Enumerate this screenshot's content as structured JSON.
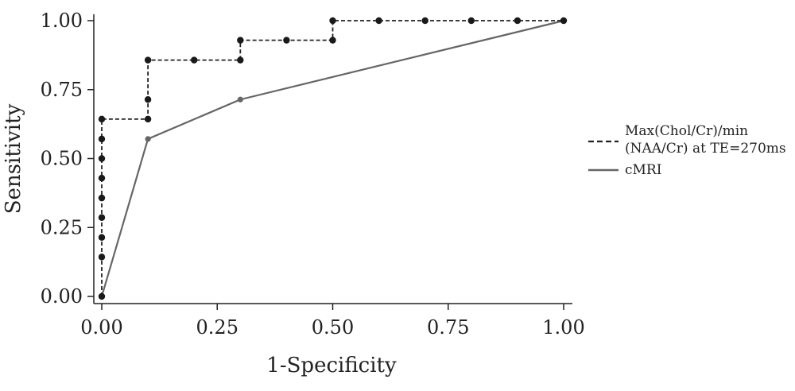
{
  "chart_data": {
    "type": "line",
    "xlabel": "1-Specificity",
    "ylabel": "Sensitivity",
    "xlim": [
      0,
      1
    ],
    "ylim": [
      0,
      1
    ],
    "x_ticks": [
      "0.00",
      "0.25",
      "0.50",
      "0.75",
      "1.00"
    ],
    "y_ticks": [
      "0.00",
      "0.25",
      "0.50",
      "0.75",
      "1.00"
    ],
    "grid": false,
    "legend_position": "right",
    "series": [
      {
        "name": "Max(Chol/Cr)/min (NAA/Cr) at TE=270ms",
        "legend_lines": [
          "Max(Chol/Cr)/min",
          "(NAA/Cr) at TE=270ms"
        ],
        "style": "dashed",
        "color": "#222222",
        "points": [
          [
            0.0,
            0.0
          ],
          [
            0.0,
            0.143
          ],
          [
            0.0,
            0.214
          ],
          [
            0.0,
            0.286
          ],
          [
            0.0,
            0.357
          ],
          [
            0.0,
            0.429
          ],
          [
            0.0,
            0.5
          ],
          [
            0.0,
            0.571
          ],
          [
            0.0,
            0.643
          ],
          [
            0.1,
            0.643
          ],
          [
            0.1,
            0.714
          ],
          [
            0.1,
            0.857
          ],
          [
            0.2,
            0.857
          ],
          [
            0.3,
            0.857
          ],
          [
            0.3,
            0.929
          ],
          [
            0.4,
            0.929
          ],
          [
            0.5,
            0.929
          ],
          [
            0.5,
            1.0
          ],
          [
            0.6,
            1.0
          ],
          [
            0.7,
            1.0
          ],
          [
            0.8,
            1.0
          ],
          [
            0.9,
            1.0
          ],
          [
            1.0,
            1.0
          ]
        ]
      },
      {
        "name": "cMRI",
        "legend_lines": [
          "cMRI"
        ],
        "style": "solid",
        "color": "#666666",
        "points": [
          [
            0.0,
            0.0
          ],
          [
            0.1,
            0.571
          ],
          [
            0.3,
            0.714
          ],
          [
            1.0,
            1.0
          ]
        ]
      }
    ]
  }
}
